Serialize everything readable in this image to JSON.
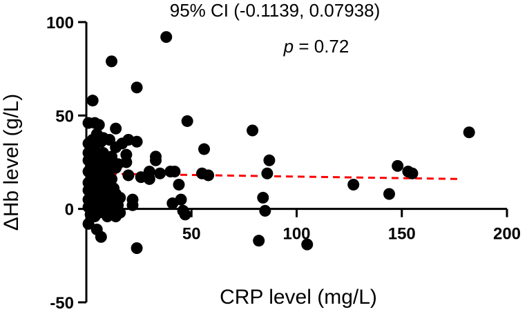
{
  "chart_data": {
    "type": "scatter",
    "title": "",
    "xlabel": "CRP level (mg/L)",
    "ylabel": "ΔHb level (g/L)",
    "xlim": [
      0,
      200
    ],
    "ylim": [
      -50,
      100
    ],
    "x_ticks": [
      50,
      100,
      150,
      200
    ],
    "y_ticks": [
      100,
      50,
      0,
      -50
    ],
    "grid": false,
    "annotations": {
      "ci": "95% CI (-0.1139, 0.07938)",
      "p_symbol": "p",
      "p_value": " = 0.72"
    },
    "regression": {
      "x": [
        0,
        178
      ],
      "y": [
        19,
        16
      ],
      "color": "#ff0000",
      "style": "dashed"
    },
    "point_color": "#000000",
    "points": [
      [
        1,
        46
      ],
      [
        1,
        35
      ],
      [
        1,
        30
      ],
      [
        1,
        26
      ],
      [
        1,
        20
      ],
      [
        1,
        14
      ],
      [
        1,
        10
      ],
      [
        1,
        5
      ],
      [
        1,
        1
      ],
      [
        1,
        -8
      ],
      [
        2,
        33
      ],
      [
        2,
        22
      ],
      [
        2,
        12
      ],
      [
        2,
        4
      ],
      [
        2,
        -3
      ],
      [
        3,
        58
      ],
      [
        3,
        37
      ],
      [
        3,
        25
      ],
      [
        3,
        18
      ],
      [
        3,
        13
      ],
      [
        3,
        8
      ],
      [
        3,
        2
      ],
      [
        3,
        -1
      ],
      [
        4,
        46
      ],
      [
        4,
        34
      ],
      [
        4,
        28
      ],
      [
        4,
        22
      ],
      [
        4,
        16
      ],
      [
        4,
        10
      ],
      [
        4,
        6
      ],
      [
        4,
        0
      ],
      [
        4,
        -4
      ],
      [
        5,
        40
      ],
      [
        5,
        30
      ],
      [
        5,
        20
      ],
      [
        5,
        12
      ],
      [
        5,
        -11
      ],
      [
        6,
        45
      ],
      [
        6,
        26
      ],
      [
        6,
        14
      ],
      [
        6,
        5
      ],
      [
        6,
        -2
      ],
      [
        7,
        36
      ],
      [
        7,
        24
      ],
      [
        7,
        16
      ],
      [
        7,
        8
      ],
      [
        7,
        -15
      ],
      [
        8,
        38
      ],
      [
        8,
        30
      ],
      [
        8,
        22
      ],
      [
        8,
        12
      ],
      [
        8,
        3
      ],
      [
        8,
        -1
      ],
      [
        9,
        28
      ],
      [
        9,
        17
      ],
      [
        9,
        6
      ],
      [
        10,
        26
      ],
      [
        10,
        18
      ],
      [
        10,
        14
      ],
      [
        10,
        2
      ],
      [
        10,
        -4
      ],
      [
        11,
        37
      ],
      [
        11,
        24
      ],
      [
        11,
        12
      ],
      [
        11,
        8
      ],
      [
        11,
        -2
      ],
      [
        12,
        79
      ],
      [
        12,
        28
      ],
      [
        12,
        22
      ],
      [
        12,
        16
      ],
      [
        12,
        0
      ],
      [
        13,
        11
      ],
      [
        13,
        5
      ],
      [
        13,
        -1
      ],
      [
        14,
        43
      ],
      [
        14,
        33
      ],
      [
        14,
        22
      ],
      [
        14,
        8
      ],
      [
        14,
        -4
      ],
      [
        15,
        24
      ],
      [
        15,
        2
      ],
      [
        16,
        6
      ],
      [
        16,
        -2
      ],
      [
        17,
        35
      ],
      [
        19,
        29
      ],
      [
        19,
        25
      ],
      [
        20,
        37
      ],
      [
        20,
        18
      ],
      [
        22,
        5
      ],
      [
        22,
        2
      ],
      [
        24,
        65
      ],
      [
        24,
        36
      ],
      [
        24,
        -21
      ],
      [
        26,
        17
      ],
      [
        30,
        20
      ],
      [
        30,
        16
      ],
      [
        33,
        28
      ],
      [
        33,
        26
      ],
      [
        35,
        19
      ],
      [
        38,
        92
      ],
      [
        40,
        20
      ],
      [
        41,
        3
      ],
      [
        42,
        20
      ],
      [
        44,
        13
      ],
      [
        45,
        5
      ],
      [
        46,
        -1
      ],
      [
        47,
        -3
      ],
      [
        48,
        47
      ],
      [
        55,
        19
      ],
      [
        56,
        32
      ],
      [
        58,
        18
      ],
      [
        79,
        42
      ],
      [
        82,
        -17
      ],
      [
        84,
        6
      ],
      [
        85,
        -1
      ],
      [
        86,
        19
      ],
      [
        87,
        26
      ],
      [
        105,
        -19
      ],
      [
        127,
        13
      ],
      [
        144,
        8
      ],
      [
        148,
        23
      ],
      [
        153,
        20
      ],
      [
        155,
        19
      ],
      [
        182,
        41
      ]
    ]
  }
}
